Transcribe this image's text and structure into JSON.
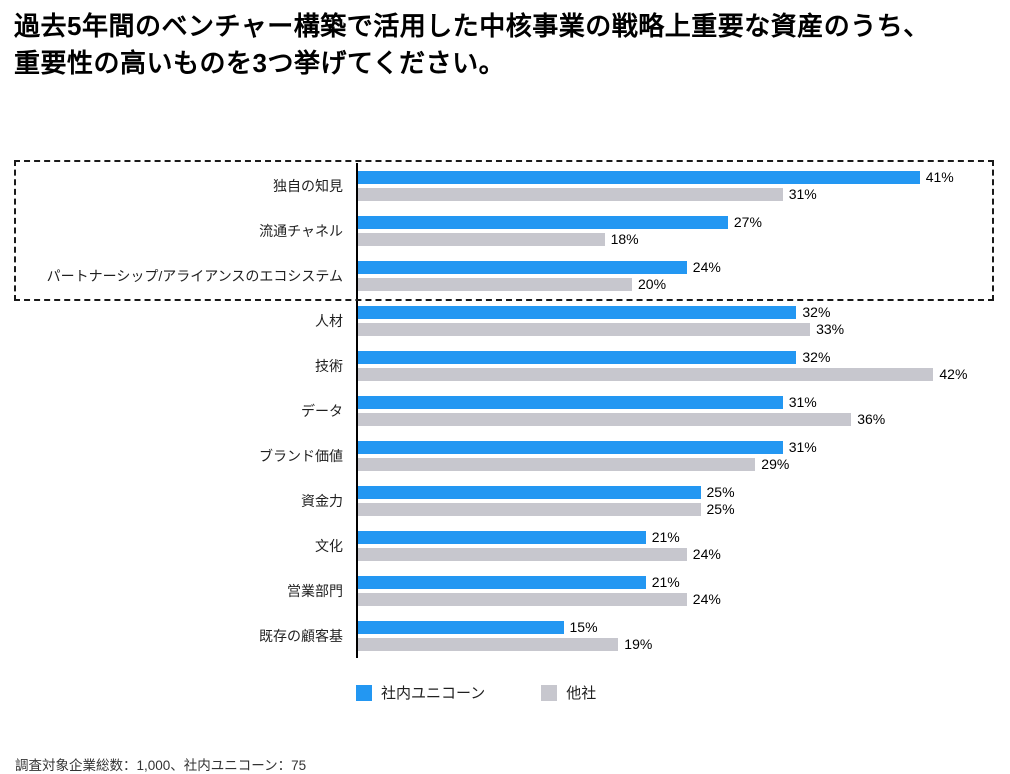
{
  "title": {
    "line1": "過去5年間のベンチャー構築で活用した中核事業の戦略上重要な資産のうち、",
    "line2": "重要性の高いものを3つ挙げてください。",
    "full": "過去5年間のベンチャー構築で活用した中核事業の戦略上重要な資産のうち、重要性の高いものを3つ挙げてください。"
  },
  "colors": {
    "unicorn_blue": "#2397F2",
    "other_gray": "#C7C7CE",
    "axis_black": "#000000",
    "highlight_border": "#1a1a1a"
  },
  "chart_data": {
    "type": "bar",
    "orientation": "horizontal",
    "categories": [
      "独自の知見",
      "流通チャネル",
      "パートナーシップ/アライアンスのエコシステム",
      "人材",
      "技術",
      "データ",
      "ブランド価値",
      "資金力",
      "文化",
      "営業部門",
      "既存の顧客基"
    ],
    "series": [
      {
        "name": "社内ユニコーン",
        "color": "#2397F2",
        "values": [
          41,
          27,
          24,
          32,
          32,
          31,
          31,
          25,
          21,
          21,
          15
        ]
      },
      {
        "name": "他社",
        "color": "#C7C7CE",
        "values": [
          31,
          18,
          20,
          33,
          42,
          36,
          29,
          25,
          24,
          24,
          19
        ]
      }
    ],
    "value_suffix": "%",
    "xlim": [
      0,
      45
    ],
    "grid": false,
    "legend_position": "bottom",
    "highlighted_categories": [
      "独自の知見",
      "流通チャネル",
      "パートナーシップ/アライアンスのエコシステム"
    ]
  },
  "legend": {
    "items": [
      {
        "label": "社内ユニコーン",
        "color": "#2397F2"
      },
      {
        "label": "他社",
        "color": "#C7C7CE"
      }
    ]
  },
  "footer": {
    "note": "調査対象企業総数：1,000、社内ユニコーン：75"
  }
}
